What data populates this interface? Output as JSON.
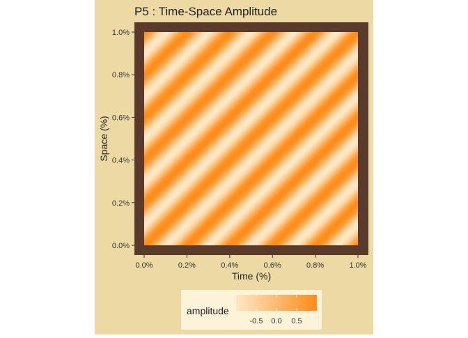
{
  "chart_data": {
    "type": "heatmap",
    "title": "P5 : Time-Space Amplitude",
    "xlabel": "Time (%)",
    "ylabel": "Space (%)",
    "x_ticks": [
      "0.0%",
      "0.2%",
      "0.4%",
      "0.6%",
      "0.8%",
      "1.0%"
    ],
    "y_ticks": [
      "0.0%",
      "0.2%",
      "0.4%",
      "0.6%",
      "0.8%",
      "1.0%"
    ],
    "xlim": [
      0,
      1
    ],
    "ylim": [
      0,
      1
    ],
    "pattern": {
      "form": "sinusoidal diagonal bands",
      "stripe_count_along_diagonal": 10,
      "orientation": "bottom-left to top-right"
    },
    "legend": {
      "title": "amplitude",
      "ticks": [
        "-0.5",
        "0.0",
        "0.5"
      ],
      "range": [
        -1,
        1
      ],
      "placement": "bottom",
      "low_color": "#fde8c4",
      "high_color": "#ff8c1a"
    },
    "colors": {
      "outer_background": "#edd9a3",
      "panel_border": "#5a3a2a",
      "legend_box": "#fdf3d8",
      "text": "#222222"
    }
  }
}
